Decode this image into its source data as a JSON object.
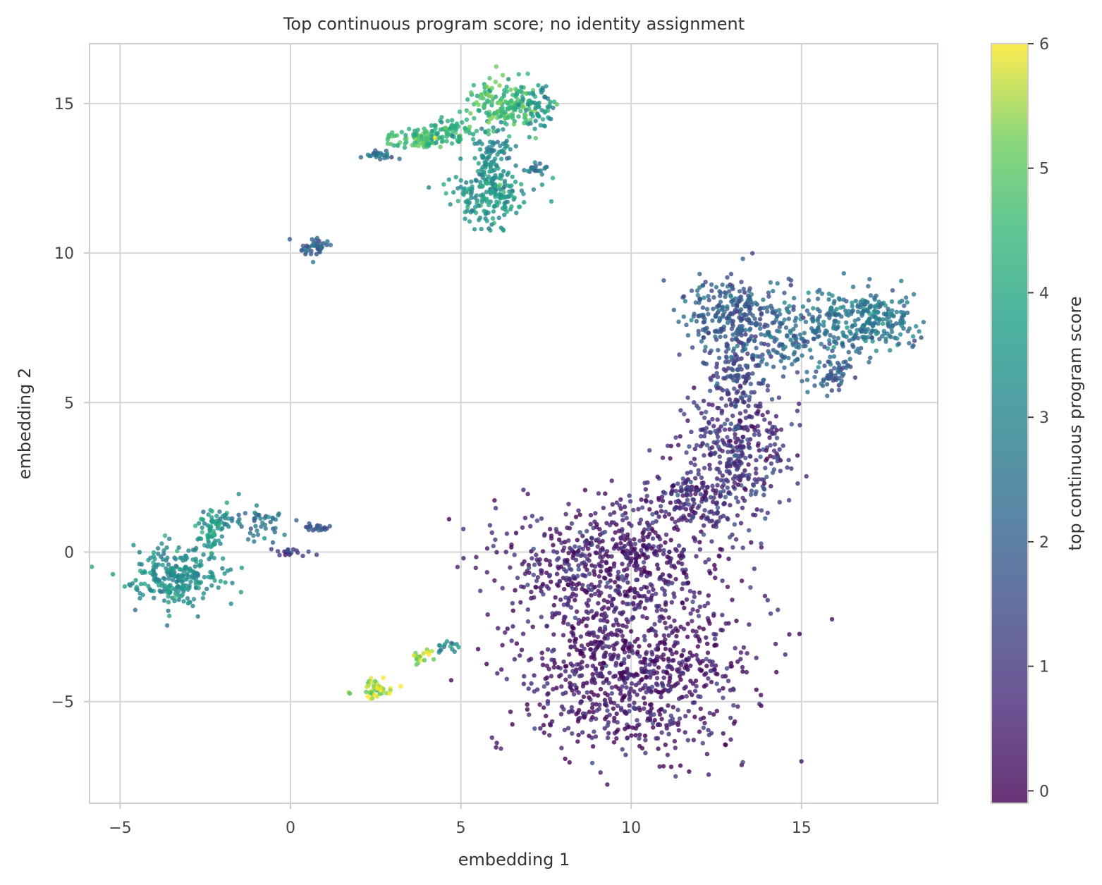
{
  "chart_data": {
    "type": "scatter",
    "title": "Top continuous program score; no identity assignment",
    "xlabel": "embedding 1",
    "ylabel": "embedding 2",
    "xlim": [
      -5.9,
      19.0
    ],
    "ylim": [
      -8.4,
      17.0
    ],
    "xticks": [
      -5,
      0,
      5,
      10,
      15
    ],
    "yticks": [
      -5,
      0,
      5,
      10,
      15
    ],
    "xtick_labels": [
      "−5",
      "0",
      "5",
      "10",
      "15"
    ],
    "ytick_labels": [
      "−5",
      "0",
      "5",
      "10",
      "15"
    ],
    "grid": true,
    "colormap": "viridis",
    "colorbar": {
      "label": "top continuous program score",
      "range": [
        -0.1,
        6.0
      ],
      "ticks": [
        0,
        1,
        2,
        3,
        4,
        5,
        6
      ],
      "tick_labels": [
        "0",
        "1",
        "2",
        "3",
        "4",
        "5",
        "6"
      ]
    },
    "clusters": [
      {
        "name": "",
        "cx": 10.0,
        "cy": -4.0,
        "sx": 1.9,
        "sy": 1.7,
        "score": 0.35,
        "n": 900
      },
      {
        "name": "",
        "cx": 9.4,
        "cy": -0.3,
        "sx": 1.9,
        "sy": 1.2,
        "score": 0.5,
        "n": 600
      },
      {
        "name": "",
        "cx": 13.1,
        "cy": 3.6,
        "sx": 0.9,
        "sy": 1.3,
        "score": 0.9,
        "n": 350
      },
      {
        "name": "",
        "cx": 11.9,
        "cy": 1.7,
        "sx": 0.9,
        "sy": 0.6,
        "score": 0.8,
        "n": 160
      },
      {
        "name": "",
        "cx": 13.1,
        "cy": 6.2,
        "sx": 0.5,
        "sy": 0.7,
        "score": 1.4,
        "n": 120
      },
      {
        "name": "",
        "cx": 13.1,
        "cy": 7.9,
        "sx": 0.9,
        "sy": 0.7,
        "score": 1.9,
        "n": 280
      },
      {
        "name": "",
        "cx": 16.8,
        "cy": 7.7,
        "sx": 0.9,
        "sy": 0.6,
        "score": 2.6,
        "n": 280
      },
      {
        "name": "",
        "cx": 14.9,
        "cy": 7.0,
        "sx": 0.8,
        "sy": 0.7,
        "score": 2.2,
        "n": 120
      },
      {
        "name": "",
        "cx": 16.0,
        "cy": 5.9,
        "sx": 0.3,
        "sy": 0.3,
        "score": 1.8,
        "n": 50
      },
      {
        "name": "",
        "cx": 5.8,
        "cy": 11.9,
        "sx": 0.65,
        "sy": 0.55,
        "score": 3.6,
        "n": 200
      },
      {
        "name": "",
        "cx": 5.9,
        "cy": 13.4,
        "sx": 0.4,
        "sy": 0.6,
        "score": 3.0,
        "n": 80
      },
      {
        "name": "",
        "cx": 6.3,
        "cy": 15.0,
        "sx": 0.7,
        "sy": 0.45,
        "score": 4.6,
        "n": 180
      },
      {
        "name": "",
        "cx": 7.2,
        "cy": 14.9,
        "sx": 0.3,
        "sy": 0.4,
        "score": 3.3,
        "n": 50
      },
      {
        "name": "",
        "cx": 3.7,
        "cy": 13.8,
        "sx": 0.6,
        "sy": 0.2,
        "score": 4.6,
        "n": 90
      },
      {
        "name": "",
        "cx": 4.8,
        "cy": 14.1,
        "sx": 0.5,
        "sy": 0.25,
        "score": 4.2,
        "n": 60
      },
      {
        "name": "",
        "cx": 2.6,
        "cy": 13.3,
        "sx": 0.25,
        "sy": 0.1,
        "score": 2.3,
        "n": 25
      },
      {
        "name": "",
        "cx": 7.2,
        "cy": 12.8,
        "sx": 0.2,
        "sy": 0.12,
        "score": 2.7,
        "n": 20
      },
      {
        "name": "",
        "cx": 0.7,
        "cy": 10.2,
        "sx": 0.25,
        "sy": 0.18,
        "score": 2.1,
        "n": 40
      },
      {
        "name": "",
        "cx": -3.3,
        "cy": -0.8,
        "sx": 0.75,
        "sy": 0.55,
        "score": 3.3,
        "n": 260
      },
      {
        "name": "",
        "cx": -2.3,
        "cy": 0.8,
        "sx": 0.3,
        "sy": 0.4,
        "score": 3.6,
        "n": 70
      },
      {
        "name": "",
        "cx": -0.9,
        "cy": 1.0,
        "sx": 0.6,
        "sy": 0.4,
        "score": 2.6,
        "n": 50
      },
      {
        "name": "",
        "cx": 0.8,
        "cy": 0.8,
        "sx": 0.25,
        "sy": 0.08,
        "score": 1.8,
        "n": 20
      },
      {
        "name": "",
        "cx": 0.0,
        "cy": 0.0,
        "sx": 0.4,
        "sy": 0.08,
        "score": 1.3,
        "n": 20
      },
      {
        "name": "",
        "cx": 2.5,
        "cy": -4.6,
        "sx": 0.3,
        "sy": 0.2,
        "score": 5.6,
        "n": 45
      },
      {
        "name": "",
        "cx": 3.9,
        "cy": -3.5,
        "sx": 0.15,
        "sy": 0.15,
        "score": 5.6,
        "n": 20
      },
      {
        "name": "",
        "cx": 4.6,
        "cy": -3.2,
        "sx": 0.3,
        "sy": 0.15,
        "score": 3.2,
        "n": 15
      }
    ]
  }
}
